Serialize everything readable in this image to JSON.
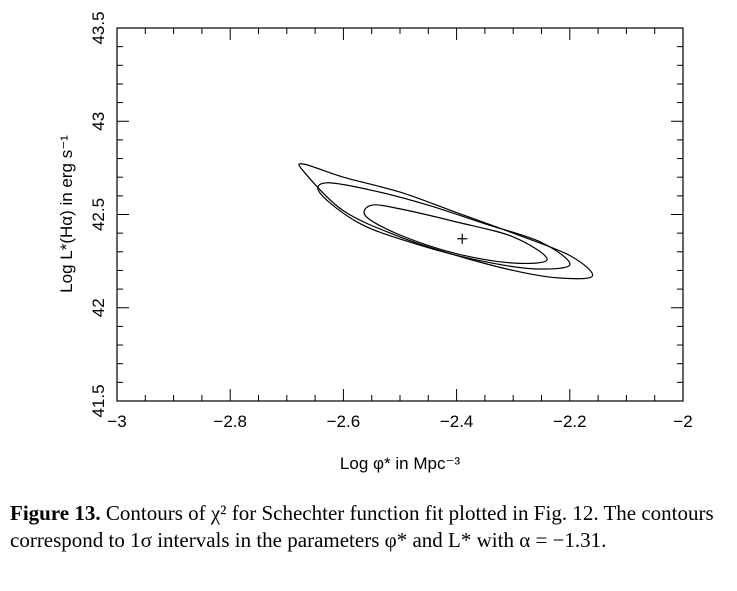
{
  "chart_data": {
    "type": "contour",
    "title": "",
    "xlabel": "Log φ* in Mpc⁻³",
    "ylabel": "Log L*(Hα) in erg s⁻¹",
    "xlim": [
      -3,
      -2
    ],
    "ylim": [
      41.5,
      43.5
    ],
    "x_ticks": [
      "−3",
      "−2.8",
      "−2.6",
      "−2.4",
      "−2.2",
      "−2"
    ],
    "y_ticks": [
      "41.5",
      "42",
      "42.5",
      "43",
      "43.5"
    ],
    "x_tick_values": [
      -3,
      -2.8,
      -2.6,
      -2.4,
      -2.2,
      -2
    ],
    "y_tick_values": [
      41.5,
      42,
      42.5,
      43,
      43.5
    ],
    "best_fit": {
      "x": -2.39,
      "y": 42.37
    },
    "contours": [
      {
        "name": "inner",
        "points": [
          [
            -2.55,
            42.55
          ],
          [
            -2.5,
            42.53
          ],
          [
            -2.4,
            42.46
          ],
          [
            -2.3,
            42.38
          ],
          [
            -2.24,
            42.26
          ],
          [
            -2.3,
            42.24
          ],
          [
            -2.4,
            42.29
          ],
          [
            -2.5,
            42.39
          ],
          [
            -2.56,
            42.49
          ]
        ]
      },
      {
        "name": "middle",
        "points": [
          [
            -2.63,
            42.67
          ],
          [
            -2.55,
            42.63
          ],
          [
            -2.45,
            42.55
          ],
          [
            -2.35,
            42.45
          ],
          [
            -2.25,
            42.35
          ],
          [
            -2.2,
            42.23
          ],
          [
            -2.27,
            42.21
          ],
          [
            -2.37,
            42.26
          ],
          [
            -2.47,
            42.34
          ],
          [
            -2.57,
            42.45
          ],
          [
            -2.64,
            42.61
          ]
        ]
      },
      {
        "name": "outer",
        "points": [
          [
            -2.67,
            42.77
          ],
          [
            -2.6,
            42.7
          ],
          [
            -2.5,
            42.62
          ],
          [
            -2.4,
            42.51
          ],
          [
            -2.3,
            42.4
          ],
          [
            -2.2,
            42.28
          ],
          [
            -2.16,
            42.17
          ],
          [
            -2.22,
            42.16
          ],
          [
            -2.3,
            42.2
          ],
          [
            -2.4,
            42.28
          ],
          [
            -2.5,
            42.38
          ],
          [
            -2.6,
            42.52
          ],
          [
            -2.67,
            42.73
          ]
        ]
      }
    ],
    "grid": false,
    "legend": "none"
  },
  "caption": {
    "label": "Figure 13.",
    "text": " Contours of χ² for Schechter function fit plotted in Fig. 12. The contours correspond to 1σ intervals in the parameters φ* and L* with α = −1.31."
  }
}
